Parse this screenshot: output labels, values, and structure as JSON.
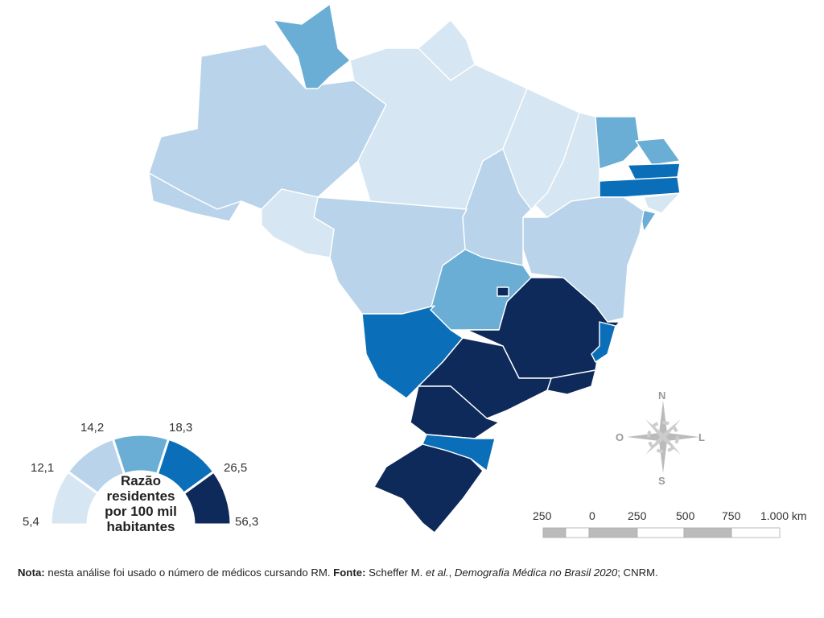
{
  "colors": {
    "class1": "#d6e6f2",
    "class2": "#b9d4ea",
    "class3": "#6aaed6",
    "class4": "#0a6fb8",
    "class5": "#0e2a5a"
  },
  "states": [
    {
      "id": "AM",
      "class": 2
    },
    {
      "id": "AC",
      "class": 2
    },
    {
      "id": "RR",
      "class": 3
    },
    {
      "id": "PA",
      "class": 1
    },
    {
      "id": "AP",
      "class": 1
    },
    {
      "id": "MA",
      "class": 1
    },
    {
      "id": "PI",
      "class": 1
    },
    {
      "id": "CE",
      "class": 3
    },
    {
      "id": "RN",
      "class": 3
    },
    {
      "id": "PB",
      "class": 4
    },
    {
      "id": "PE",
      "class": 4
    },
    {
      "id": "AL",
      "class": 1
    },
    {
      "id": "SE",
      "class": 3
    },
    {
      "id": "BA",
      "class": 2
    },
    {
      "id": "TO",
      "class": 2
    },
    {
      "id": "MT",
      "class": 2
    },
    {
      "id": "RO",
      "class": 1
    },
    {
      "id": "GO",
      "class": 3
    },
    {
      "id": "DF",
      "class": 5
    },
    {
      "id": "MS",
      "class": 4
    },
    {
      "id": "MG",
      "class": 5
    },
    {
      "id": "ES",
      "class": 4
    },
    {
      "id": "RJ",
      "class": 5
    },
    {
      "id": "SP",
      "class": 5
    },
    {
      "id": "PR",
      "class": 5
    },
    {
      "id": "SC",
      "class": 4
    },
    {
      "id": "RS",
      "class": 5
    }
  ],
  "legend": {
    "title_lines": [
      "Razão",
      "residentes",
      "por 100 mil",
      "habitantes"
    ],
    "breaks": [
      "5,4",
      "12,1",
      "14,2",
      "18,3",
      "26,5",
      "56,3"
    ]
  },
  "compass": {
    "n": "N",
    "s": "S",
    "e": "L",
    "w": "O"
  },
  "scale_bar": {
    "labels": [
      "250",
      "0",
      "250",
      "500",
      "750",
      "1.000 km"
    ]
  },
  "note": {
    "label": "Nota:",
    "text": " nesta análise foi usado o número de médicos cursando RM. ",
    "source_label": "Fonte:",
    "source_text": " Scheffer M. ",
    "source_etal": "et al.",
    "source_sep": ", ",
    "source_title": "Demografia Médica no Brasil 2020",
    "source_end": "; CNRM."
  }
}
